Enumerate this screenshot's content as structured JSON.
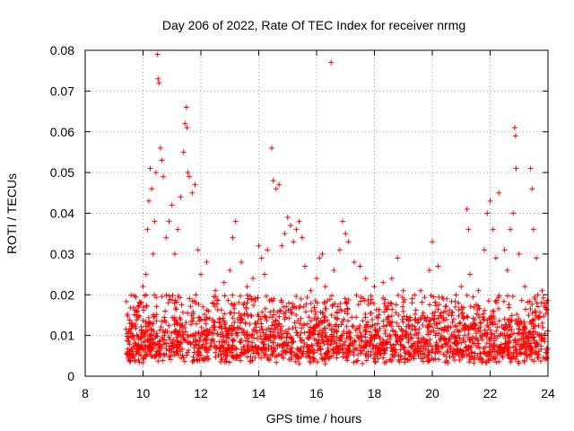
{
  "chart_data": {
    "type": "scatter",
    "title": "Day 206 of 2022, Rate Of TEC Index for receiver nrmg",
    "xlabel": "GPS time / hours",
    "ylabel": "ROTI / TECUs",
    "xlim": [
      8,
      24
    ],
    "ylim": [
      0,
      0.08
    ],
    "x_ticks": [
      8,
      10,
      12,
      14,
      16,
      18,
      20,
      22,
      24
    ],
    "x_tick_labels": [
      "8",
      "10",
      "12",
      "14",
      "16",
      "18",
      "20",
      "22",
      "24"
    ],
    "y_ticks": [
      0,
      0.01,
      0.02,
      0.03,
      0.04,
      0.05,
      0.06,
      0.07,
      0.08
    ],
    "y_tick_labels": [
      "0",
      "0.01",
      "0.02",
      "0.03",
      "0.04",
      "0.05",
      "0.06",
      "0.07",
      "0.08"
    ],
    "grid": true,
    "marker": "+",
    "color": "#ff0000",
    "series": [
      {
        "name": "ROTI",
        "points": [
          [
            9.5,
            0.011
          ],
          [
            9.6,
            0.013
          ],
          [
            9.7,
            0.009
          ],
          [
            9.8,
            0.016
          ],
          [
            9.9,
            0.018
          ],
          [
            10.0,
            0.022
          ],
          [
            10.1,
            0.025
          ],
          [
            10.15,
            0.036
          ],
          [
            10.2,
            0.043
          ],
          [
            10.25,
            0.051
          ],
          [
            10.3,
            0.046
          ],
          [
            10.35,
            0.03
          ],
          [
            10.4,
            0.038
          ],
          [
            10.45,
            0.05
          ],
          [
            10.5,
            0.079
          ],
          [
            10.52,
            0.073
          ],
          [
            10.55,
            0.072
          ],
          [
            10.6,
            0.056
          ],
          [
            10.65,
            0.053
          ],
          [
            10.7,
            0.049
          ],
          [
            10.8,
            0.034
          ],
          [
            10.9,
            0.038
          ],
          [
            11.0,
            0.042
          ],
          [
            11.1,
            0.03
          ],
          [
            11.2,
            0.036
          ],
          [
            11.3,
            0.044
          ],
          [
            11.4,
            0.055
          ],
          [
            11.45,
            0.062
          ],
          [
            11.5,
            0.066
          ],
          [
            11.52,
            0.061
          ],
          [
            11.55,
            0.05
          ],
          [
            11.6,
            0.049
          ],
          [
            11.7,
            0.045
          ],
          [
            11.8,
            0.047
          ],
          [
            11.9,
            0.031
          ],
          [
            12.0,
            0.025
          ],
          [
            12.2,
            0.028
          ],
          [
            12.5,
            0.021
          ],
          [
            12.8,
            0.023
          ],
          [
            13.0,
            0.026
          ],
          [
            13.1,
            0.034
          ],
          [
            13.2,
            0.038
          ],
          [
            13.4,
            0.028
          ],
          [
            13.6,
            0.022
          ],
          [
            13.8,
            0.024
          ],
          [
            14.0,
            0.032
          ],
          [
            14.1,
            0.029
          ],
          [
            14.2,
            0.025
          ],
          [
            14.3,
            0.031
          ],
          [
            14.45,
            0.056
          ],
          [
            14.5,
            0.048
          ],
          [
            14.6,
            0.046
          ],
          [
            14.7,
            0.047
          ],
          [
            14.8,
            0.032
          ],
          [
            14.9,
            0.035
          ],
          [
            15.0,
            0.039
          ],
          [
            15.1,
            0.037
          ],
          [
            15.2,
            0.033
          ],
          [
            15.3,
            0.036
          ],
          [
            15.4,
            0.038
          ],
          [
            15.5,
            0.034
          ],
          [
            15.6,
            0.027
          ],
          [
            15.8,
            0.021
          ],
          [
            16.0,
            0.024
          ],
          [
            16.1,
            0.029
          ],
          [
            16.2,
            0.03
          ],
          [
            16.3,
            0.022
          ],
          [
            16.5,
            0.077
          ],
          [
            16.6,
            0.026
          ],
          [
            16.8,
            0.031
          ],
          [
            16.9,
            0.038
          ],
          [
            17.0,
            0.035
          ],
          [
            17.1,
            0.033
          ],
          [
            17.3,
            0.028
          ],
          [
            17.5,
            0.027
          ],
          [
            17.7,
            0.024
          ],
          [
            18.0,
            0.022
          ],
          [
            18.3,
            0.023
          ],
          [
            18.6,
            0.024
          ],
          [
            18.8,
            0.029
          ],
          [
            19.0,
            0.021
          ],
          [
            19.3,
            0.018
          ],
          [
            19.6,
            0.021
          ],
          [
            19.9,
            0.026
          ],
          [
            20.0,
            0.033
          ],
          [
            20.2,
            0.027
          ],
          [
            20.5,
            0.019
          ],
          [
            20.8,
            0.017
          ],
          [
            21.0,
            0.022
          ],
          [
            21.2,
            0.041
          ],
          [
            21.25,
            0.036
          ],
          [
            21.3,
            0.025
          ],
          [
            21.6,
            0.021
          ],
          [
            21.8,
            0.031
          ],
          [
            21.9,
            0.04
          ],
          [
            22.0,
            0.043
          ],
          [
            22.1,
            0.036
          ],
          [
            22.2,
            0.029
          ],
          [
            22.3,
            0.045
          ],
          [
            22.5,
            0.031
          ],
          [
            22.6,
            0.026
          ],
          [
            22.7,
            0.036
          ],
          [
            22.8,
            0.04
          ],
          [
            22.85,
            0.061
          ],
          [
            22.88,
            0.059
          ],
          [
            22.9,
            0.051
          ],
          [
            23.0,
            0.03
          ],
          [
            23.2,
            0.022
          ],
          [
            23.4,
            0.051
          ],
          [
            23.45,
            0.046
          ],
          [
            23.5,
            0.036
          ],
          [
            23.6,
            0.029
          ],
          [
            23.8,
            0.021
          ],
          [
            23.95,
            0.018
          ]
        ]
      }
    ],
    "baseline_band": {
      "x_start": 9.4,
      "x_end": 24.0,
      "typical_min": 0.003,
      "typical_max": 0.02,
      "center": 0.0095
    }
  }
}
